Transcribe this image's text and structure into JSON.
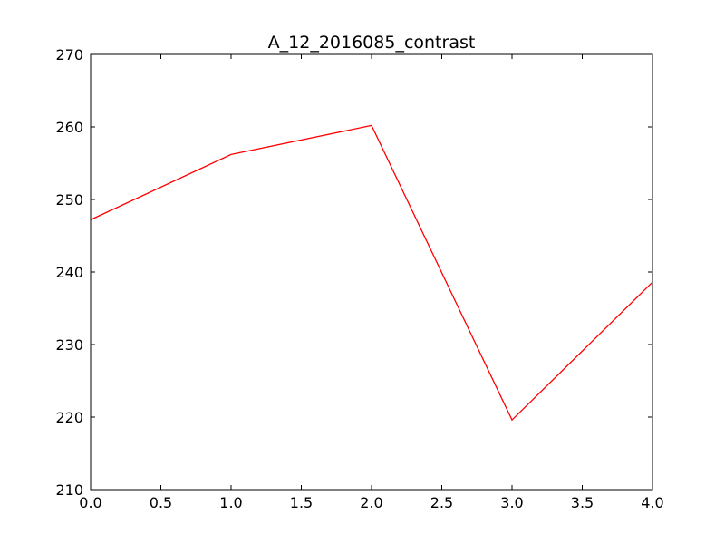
{
  "chart_data": {
    "type": "line",
    "title": "A_12_2016085_contrast",
    "xlabel": "",
    "ylabel": "",
    "xlim": [
      0,
      4
    ],
    "ylim": [
      210,
      270
    ],
    "x_ticks": [
      0,
      0.5,
      1,
      1.5,
      2,
      2.5,
      3,
      3.5,
      4
    ],
    "x_tick_labels": [
      "0.0",
      "0.5",
      "1.0",
      "1.5",
      "2.0",
      "2.5",
      "3.0",
      "3.5",
      "4.0"
    ],
    "y_ticks": [
      210,
      220,
      230,
      240,
      250,
      260,
      270
    ],
    "y_tick_labels": [
      "210",
      "220",
      "230",
      "240",
      "250",
      "260",
      "270"
    ],
    "grid": false,
    "series": [
      {
        "color": "#ff0000",
        "x": [
          0,
          1,
          2,
          3,
          4
        ],
        "y": [
          247.2,
          256.2,
          260.2,
          219.6,
          238.6
        ]
      }
    ]
  }
}
